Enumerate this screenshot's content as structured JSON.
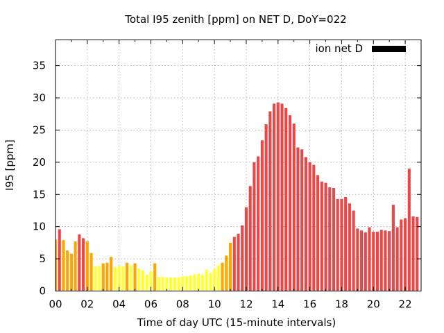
{
  "chart_data": {
    "type": "bar",
    "title": "Total I95 zenith [ppm] on NET D, DoY=022",
    "xlabel": "Time of day UTC (15-minute intervals)",
    "ylabel": "I95 [ppm]",
    "xlim": [
      0,
      23
    ],
    "ylim": [
      0,
      39
    ],
    "xticks": [
      0,
      2,
      4,
      6,
      8,
      10,
      12,
      14,
      16,
      18,
      20,
      22
    ],
    "xtick_labels": [
      "00",
      "02",
      "04",
      "06",
      "08",
      "10",
      "12",
      "14",
      "16",
      "18",
      "20",
      "22"
    ],
    "yticks": [
      0,
      5,
      10,
      15,
      20,
      25,
      30,
      35
    ],
    "ytick_labels": [
      "0",
      "5",
      "10",
      "15",
      "20",
      "25",
      "30",
      "35"
    ],
    "grid": true,
    "bar_interval_hours": 0.25,
    "series": [
      {
        "name": "ion net D",
        "legend_color": "#000000",
        "values": [
          8.0,
          9.6,
          7.9,
          6.3,
          5.8,
          7.7,
          8.8,
          8.2,
          7.7,
          5.9,
          3.8,
          3.9,
          4.3,
          4.4,
          5.3,
          3.7,
          3.9,
          3.8,
          4.4,
          4.0,
          4.3,
          3.5,
          3.2,
          2.5,
          3.1,
          4.3,
          2.2,
          2.2,
          2.1,
          2.1,
          2.1,
          2.1,
          2.3,
          2.3,
          2.4,
          2.6,
          2.7,
          2.5,
          3.3,
          2.8,
          3.4,
          4.0,
          4.4,
          5.5,
          7.5,
          8.4,
          8.9,
          10.2,
          13.0,
          16.3,
          20.0,
          20.9,
          23.4,
          25.9,
          27.9,
          29.1,
          29.3,
          29.1,
          28.4,
          27.3,
          26.0,
          22.3,
          22.0,
          20.8,
          20.0,
          19.6,
          18.0,
          17.0,
          16.8,
          16.1,
          16.0,
          14.3,
          14.3,
          14.6,
          13.6,
          12.5,
          9.7,
          9.4,
          9.1,
          9.9,
          9.2,
          9.2,
          9.5,
          9.4,
          9.3,
          13.4,
          9.9,
          11.1,
          11.3,
          19.0,
          11.6,
          11.5
        ],
        "colors": [
          "#ffa500",
          "#e84848",
          "#ffa500",
          "#ffa500",
          "#ffa500",
          "#ffa500",
          "#e84848",
          "#e84848",
          "#ffa500",
          "#ffa500",
          "#ffff33",
          "#ffff33",
          "#ffa500",
          "#ffa500",
          "#ffa500",
          "#ffff33",
          "#ffff33",
          "#ffff33",
          "#ffa500",
          "#ffff33",
          "#ffa500",
          "#ffff33",
          "#ffff33",
          "#ffff33",
          "#ffff33",
          "#ffa500",
          "#ffff33",
          "#ffff33",
          "#ffff33",
          "#ffff33",
          "#ffff33",
          "#ffff33",
          "#ffff33",
          "#ffff33",
          "#ffff33",
          "#ffff33",
          "#ffff33",
          "#ffff33",
          "#ffff33",
          "#ffff33",
          "#ffff33",
          "#ffff33",
          "#ffa500",
          "#ffa500",
          "#ffa500",
          "#e84848",
          "#e84848",
          "#e84848",
          "#e84848",
          "#e84848",
          "#e84848",
          "#e84848",
          "#e84848",
          "#e84848",
          "#e84848",
          "#e84848",
          "#e84848",
          "#e84848",
          "#e84848",
          "#e84848",
          "#e84848",
          "#e84848",
          "#e84848",
          "#e84848",
          "#e84848",
          "#e84848",
          "#e84848",
          "#e84848",
          "#e84848",
          "#e84848",
          "#e84848",
          "#e84848",
          "#e84848",
          "#e84848",
          "#e84848",
          "#e84848",
          "#e84848",
          "#e84848",
          "#e84848",
          "#e84848",
          "#e84848",
          "#e84848",
          "#e84848",
          "#e84848",
          "#e84848",
          "#e84848",
          "#e84848",
          "#e84848",
          "#e84848",
          "#e84848",
          "#e84848",
          "#e84848"
        ]
      }
    ],
    "legend": {
      "position": "top-right"
    }
  }
}
